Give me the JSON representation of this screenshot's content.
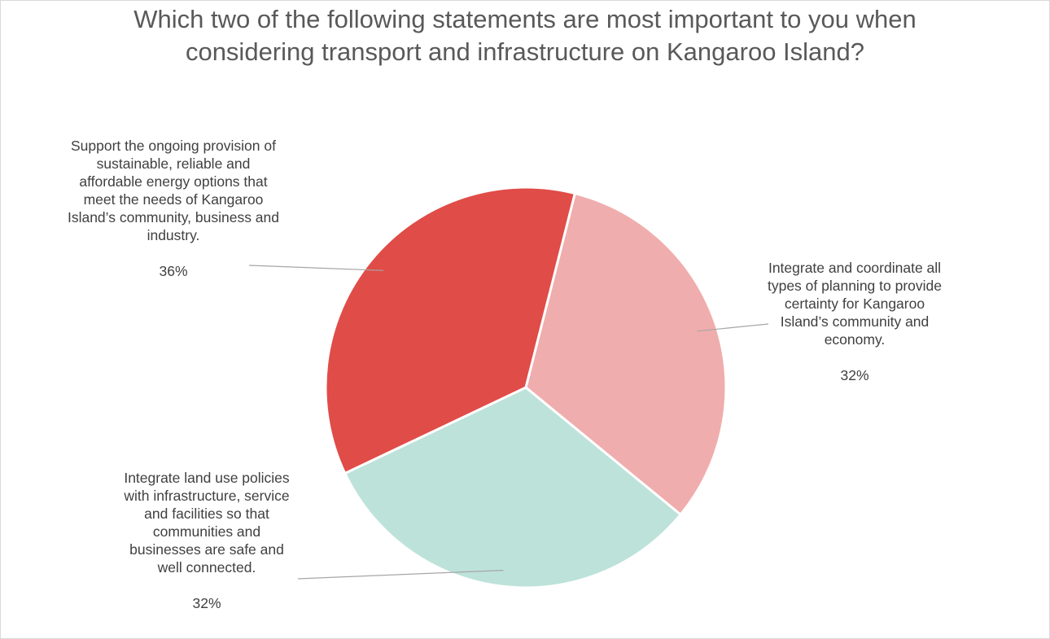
{
  "chart_data": {
    "type": "pie",
    "title": "Which two of the following statements are most important to you when considering transport and infrastructure on Kangaroo Island?",
    "slices": [
      {
        "label": "Integrate and coordinate all types of planning to provide certainty for Kangaroo Island’s community and economy.",
        "value": 32,
        "display": "32%",
        "color": "#f0adad"
      },
      {
        "label": "Integrate land use policies with infrastructure, service and facilities so that communities and businesses are safe and well connected.",
        "value": 32,
        "display": "32%",
        "color": "#bde2da"
      },
      {
        "label": "Support the ongoing provision of sustainable, reliable and affordable energy options that meet the needs of Kangaroo Island’s community, business and industry.",
        "value": 36,
        "display": "36%",
        "color": "#e04c47"
      }
    ],
    "legend": "none"
  }
}
